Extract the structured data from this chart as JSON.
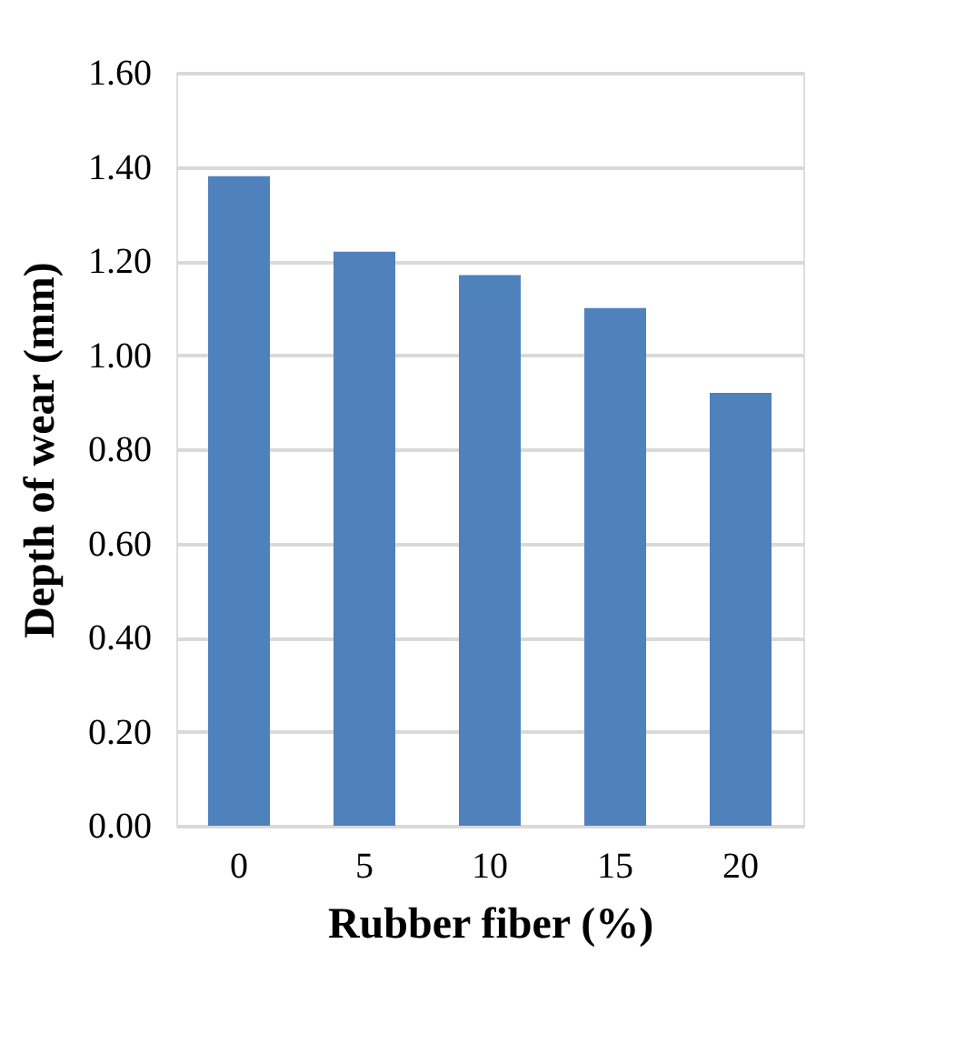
{
  "chart_data": {
    "type": "bar",
    "xlabel": "Rubber fiber (%)",
    "ylabel": "Depth of wear (mm)",
    "categories": [
      "0",
      "5",
      "10",
      "15",
      "20"
    ],
    "values": [
      1.38,
      1.22,
      1.17,
      1.1,
      0.92
    ],
    "color": "#4f81bd",
    "ylim": [
      0,
      1.6
    ],
    "yticks": [
      {
        "value": 0,
        "label": "0.00"
      },
      {
        "value": 0.2,
        "label": "0.20"
      },
      {
        "value": 0.4,
        "label": "0.40"
      },
      {
        "value": 0.6,
        "label": "0.60"
      },
      {
        "value": 0.8,
        "label": "0.80"
      },
      {
        "value": 1.0,
        "label": "1.00"
      },
      {
        "value": 1.2,
        "label": "1.20"
      },
      {
        "value": 1.4,
        "label": "1.40"
      },
      {
        "value": 1.6,
        "label": "1.60"
      }
    ],
    "grid": "y"
  }
}
